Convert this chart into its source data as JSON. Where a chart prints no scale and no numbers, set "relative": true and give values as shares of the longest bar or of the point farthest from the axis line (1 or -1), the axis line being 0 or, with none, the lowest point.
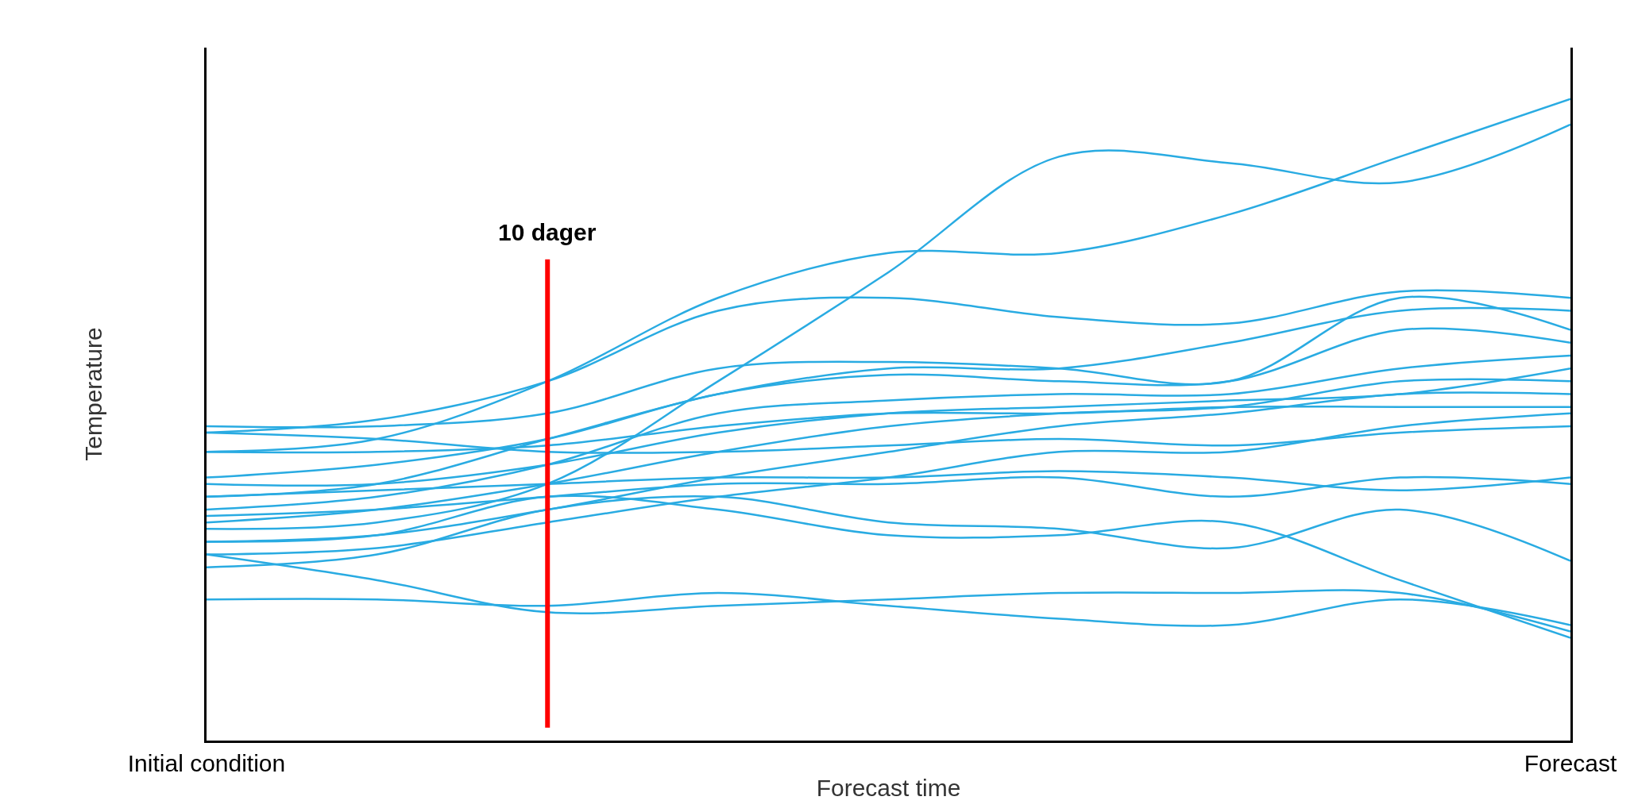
{
  "chart_data": {
    "type": "line",
    "relative": true,
    "ylabel": "Temperature",
    "xlabel": "Forecast time",
    "categories": [
      "Initial condition",
      null,
      null,
      null,
      null,
      null,
      null,
      null,
      "Forecast"
    ],
    "marker": "none",
    "line_style": "solid",
    "annotations": [
      "10 dager"
    ],
    "series": [
      {
        "color": "#29abe2",
        "values": [
          0.33,
          0.34,
          0.4,
          0.56,
          0.73,
          0.91,
          0.9,
          0.87,
          0.96
        ]
      },
      {
        "color": "#29abe2",
        "values": [
          0.45,
          0.47,
          0.56,
          0.69,
          0.76,
          0.76,
          0.82,
          0.91,
          1.0
        ]
      },
      {
        "color": "#29abe2",
        "values": [
          0.48,
          0.5,
          0.56,
          0.67,
          0.69,
          0.66,
          0.65,
          0.7,
          0.69
        ]
      },
      {
        "color": "#29abe2",
        "values": [
          0.38,
          0.4,
          0.47,
          0.54,
          0.58,
          0.58,
          0.62,
          0.67,
          0.67
        ]
      },
      {
        "color": "#29abe2",
        "values": [
          0.49,
          0.49,
          0.51,
          0.58,
          0.59,
          0.58,
          0.56,
          0.69,
          0.64
        ]
      },
      {
        "color": "#29abe2",
        "values": [
          0.41,
          0.43,
          0.47,
          0.54,
          0.57,
          0.56,
          0.56,
          0.64,
          0.62
        ]
      },
      {
        "color": "#29abe2",
        "values": [
          0.36,
          0.38,
          0.43,
          0.51,
          0.53,
          0.54,
          0.54,
          0.58,
          0.6
        ]
      },
      {
        "color": "#29abe2",
        "values": [
          0.4,
          0.4,
          0.43,
          0.48,
          0.51,
          0.52,
          0.53,
          0.54,
          0.58
        ]
      },
      {
        "color": "#29abe2",
        "values": [
          0.34,
          0.36,
          0.4,
          0.45,
          0.49,
          0.51,
          0.52,
          0.56,
          0.56
        ]
      },
      {
        "color": "#29abe2",
        "values": [
          0.31,
          0.32,
          0.36,
          0.41,
          0.45,
          0.49,
          0.51,
          0.54,
          0.54
        ]
      },
      {
        "color": "#29abe2",
        "values": [
          0.45,
          0.45,
          0.46,
          0.49,
          0.51,
          0.51,
          0.52,
          0.52,
          0.52
        ]
      },
      {
        "color": "#29abe2",
        "values": [
          0.29,
          0.3,
          0.34,
          0.38,
          0.41,
          0.45,
          0.45,
          0.49,
          0.51
        ]
      },
      {
        "color": "#29abe2",
        "values": [
          0.48,
          0.47,
          0.45,
          0.45,
          0.46,
          0.47,
          0.46,
          0.48,
          0.49
        ]
      },
      {
        "color": "#29abe2",
        "values": [
          0.38,
          0.39,
          0.4,
          0.41,
          0.41,
          0.42,
          0.41,
          0.39,
          0.41
        ]
      },
      {
        "color": "#29abe2",
        "values": [
          0.35,
          0.36,
          0.38,
          0.4,
          0.4,
          0.41,
          0.38,
          0.41,
          0.4
        ]
      },
      {
        "color": "#29abe2",
        "values": [
          0.27,
          0.29,
          0.36,
          0.38,
          0.34,
          0.33,
          0.3,
          0.36,
          0.28
        ]
      },
      {
        "color": "#29abe2",
        "values": [
          0.31,
          0.32,
          0.38,
          0.36,
          0.32,
          0.32,
          0.34,
          0.25,
          0.16
        ]
      },
      {
        "color": "#29abe2",
        "values": [
          0.22,
          0.22,
          0.21,
          0.23,
          0.21,
          0.19,
          0.18,
          0.22,
          0.18
        ]
      },
      {
        "color": "#29abe2",
        "values": [
          0.29,
          0.25,
          0.2,
          0.21,
          0.22,
          0.23,
          0.23,
          0.23,
          0.17
        ]
      }
    ]
  }
}
